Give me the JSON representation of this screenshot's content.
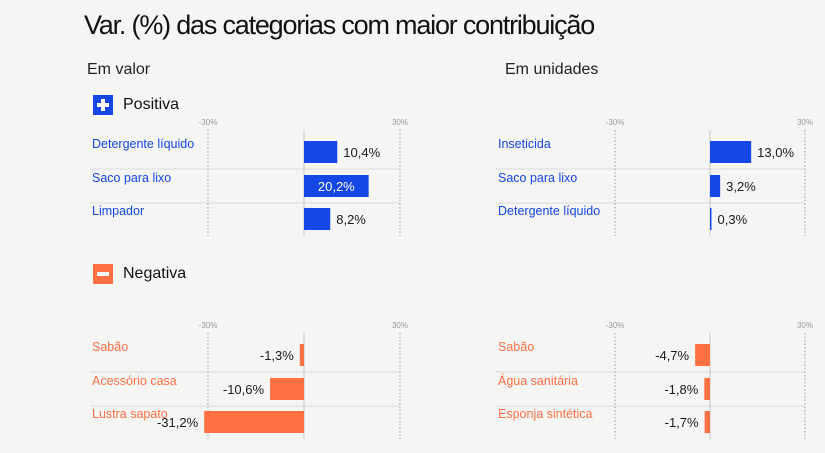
{
  "title": "Var. (%) das categorias com maior contribuição",
  "subtitles": {
    "value": "Em valor",
    "units": "Em unidades"
  },
  "sections": {
    "positive": "Positiva",
    "negative": "Negativa"
  },
  "colors": {
    "positive": "#1447e6",
    "negative": "#ff7043"
  },
  "chart_data": [
    {
      "type": "bar",
      "orientation": "horizontal",
      "group": "Positiva",
      "measure": "Em valor",
      "categories": [
        "Detergente líquido",
        "Saco para lixo",
        "Limpador"
      ],
      "values": [
        10.4,
        20.2,
        8.2
      ],
      "labels": [
        "10,4%",
        "20,2%",
        "8,2%"
      ],
      "ticks": [
        "-30%",
        "30%"
      ],
      "xlim": [
        -30,
        30
      ]
    },
    {
      "type": "bar",
      "orientation": "horizontal",
      "group": "Positiva",
      "measure": "Em unidades",
      "categories": [
        "Inseticida",
        "Saco para lixo",
        "Detergente líquido"
      ],
      "values": [
        13.0,
        3.2,
        0.3
      ],
      "labels": [
        "13,0%",
        "3,2%",
        "0,3%"
      ],
      "ticks": [
        "-30%",
        "30%"
      ],
      "xlim": [
        -30,
        30
      ]
    },
    {
      "type": "bar",
      "orientation": "horizontal",
      "group": "Negativa",
      "measure": "Em valor",
      "categories": [
        "Sabão",
        "Acessório casa",
        "Lustra sapato"
      ],
      "values": [
        -1.3,
        -10.6,
        -31.2
      ],
      "labels": [
        "-1,3%",
        "-10,6%",
        "-31,2%"
      ],
      "ticks": [
        "-30%",
        "30%"
      ],
      "xlim": [
        -30,
        30
      ]
    },
    {
      "type": "bar",
      "orientation": "horizontal",
      "group": "Negativa",
      "measure": "Em unidades",
      "categories": [
        "Sabão",
        "Água sanitária",
        "Esponja sintética"
      ],
      "values": [
        -4.7,
        -1.8,
        -1.7
      ],
      "labels": [
        "-4,7%",
        "-1,8%",
        "-1,7%"
      ],
      "ticks": [
        "-30%",
        "30%"
      ],
      "xlim": [
        -30,
        30
      ]
    }
  ]
}
